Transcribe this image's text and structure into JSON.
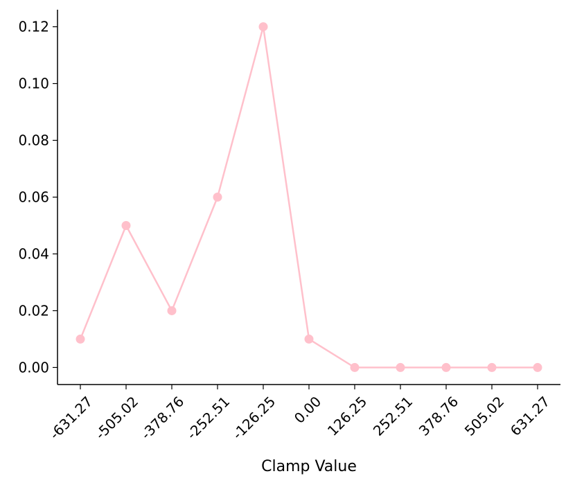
{
  "chart_data": {
    "type": "line",
    "title": "",
    "xlabel": "Clamp Value",
    "ylabel": "",
    "x": [
      -631.27,
      -505.02,
      -378.76,
      -252.51,
      -126.25,
      0.0,
      126.25,
      252.51,
      378.76,
      505.02,
      631.27
    ],
    "x_tick_labels": [
      "-631.27",
      "-505.02",
      "-378.76",
      "-252.51",
      "-126.25",
      "0.00",
      "126.25",
      "252.51",
      "378.76",
      "505.02",
      "631.27"
    ],
    "series": [
      {
        "values": [
          0.01,
          0.05,
          0.02,
          0.06,
          0.12,
          0.01,
          0.0,
          0.0,
          0.0,
          0.0,
          0.0
        ],
        "color": "#ffc0cb",
        "marker": "circle"
      }
    ],
    "y_ticks": [
      0.0,
      0.02,
      0.04,
      0.06,
      0.08,
      0.1,
      0.12
    ],
    "y_tick_labels": [
      "0.00",
      "0.02",
      "0.04",
      "0.06",
      "0.08",
      "0.10",
      "0.12"
    ],
    "ylim": [
      -0.006,
      0.126
    ],
    "xlim": [
      -694.4,
      694.4
    ],
    "grid": false,
    "spines": [
      "left",
      "bottom"
    ]
  }
}
